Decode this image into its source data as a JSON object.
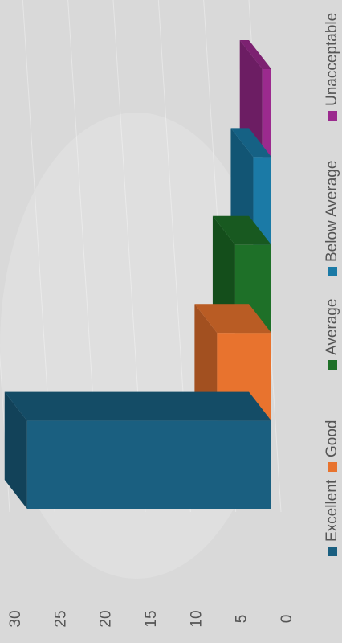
{
  "chart_data": {
    "type": "bar3d",
    "categories": [
      "Excellent",
      "Good",
      "Average",
      "Below Average",
      "Unacceptable"
    ],
    "values": [
      27,
      6,
      4,
      2,
      1
    ],
    "colors": [
      "#1a5f80",
      "#e8732e",
      "#1e7028",
      "#1b7aa6",
      "#9b2a8e"
    ],
    "ylim": [
      0,
      30
    ],
    "yticks": [
      0,
      5,
      10,
      15,
      20,
      25,
      30
    ],
    "grid": true
  }
}
